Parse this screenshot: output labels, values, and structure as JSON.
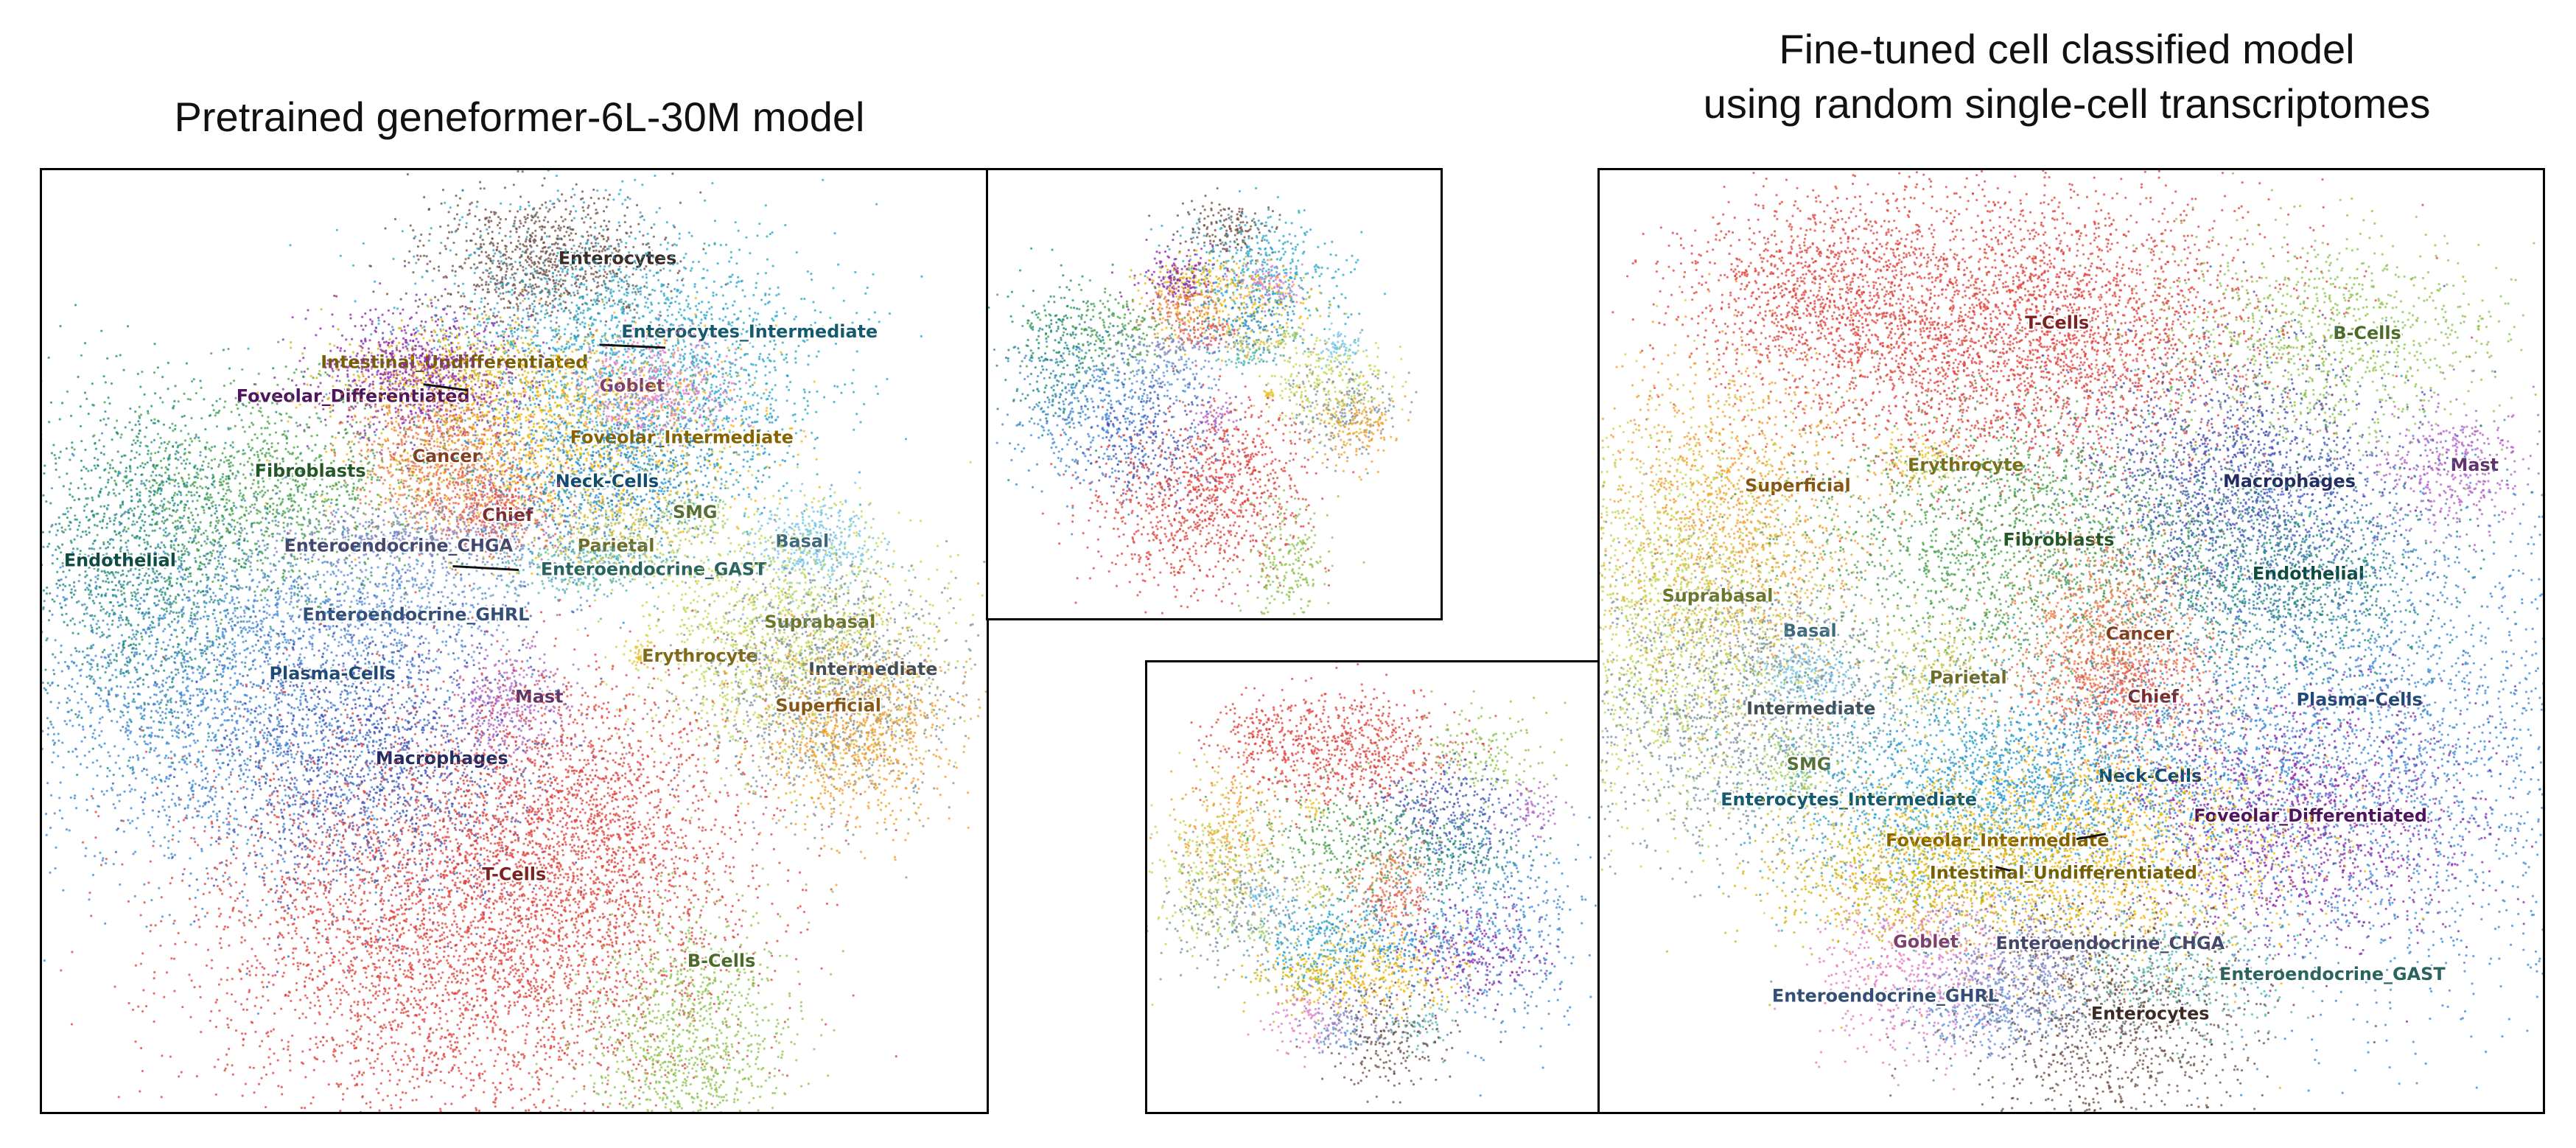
{
  "titles": {
    "left": "Pretrained geneformer-6L-30M model",
    "right_line1": "Fine-tuned cell classified model",
    "right_line2": "using random single-cell transcriptomes"
  },
  "chart_data": [
    {
      "type": "scatter",
      "panel": "left",
      "xlabel": "",
      "ylabel": "",
      "clusters": [
        {
          "name": "Enterocytes",
          "color": "#6d4c41"
        },
        {
          "name": "Enterocytes_Intermediate",
          "color": "#26a6c9"
        },
        {
          "name": "Intestinal_Undifferentiated",
          "color": "#d4b106"
        },
        {
          "name": "Goblet",
          "color": "#e377c2"
        },
        {
          "name": "Foveolar_Differentiated",
          "color": "#8e24aa"
        },
        {
          "name": "Foveolar_Intermediate",
          "color": "#f4b400"
        },
        {
          "name": "Cancer",
          "color": "#e8743b"
        },
        {
          "name": "Neck-Cells",
          "color": "#1e88c8"
        },
        {
          "name": "Fibroblasts",
          "color": "#43a047"
        },
        {
          "name": "Chief",
          "color": "#e05050"
        },
        {
          "name": "SMG",
          "color": "#9ccc65"
        },
        {
          "name": "Enteroendocrine_CHGA",
          "color": "#7b7fc4"
        },
        {
          "name": "Parietal",
          "color": "#c9c34a"
        },
        {
          "name": "Basal",
          "color": "#6ec1e4"
        },
        {
          "name": "Endothelial",
          "color": "#1a8a78"
        },
        {
          "name": "Enteroendocrine_GAST",
          "color": "#4db6ac"
        },
        {
          "name": "Enteroendocrine_GHRL",
          "color": "#5c8fd6"
        },
        {
          "name": "Suprabasal",
          "color": "#c0d84a"
        },
        {
          "name": "Erythrocyte",
          "color": "#e6c229"
        },
        {
          "name": "Intermediate",
          "color": "#78909c"
        },
        {
          "name": "Plasma-Cells",
          "color": "#3a87d6"
        },
        {
          "name": "Superficial",
          "color": "#f39c27"
        },
        {
          "name": "Mast",
          "color": "#b05fc3"
        },
        {
          "name": "Macrophages",
          "color": "#3f51b5"
        },
        {
          "name": "T-Cells",
          "color": "#e0403a"
        },
        {
          "name": "B-Cells",
          "color": "#8bc34a"
        }
      ]
    },
    {
      "type": "scatter",
      "panel": "mid-top",
      "xlabel": "",
      "ylabel": ""
    },
    {
      "type": "scatter",
      "panel": "mid-bottom",
      "xlabel": "",
      "ylabel": ""
    },
    {
      "type": "scatter",
      "panel": "right",
      "xlabel": "",
      "ylabel": "",
      "clusters": [
        {
          "name": "T-Cells",
          "color": "#e0403a"
        },
        {
          "name": "B-Cells",
          "color": "#8bc34a"
        },
        {
          "name": "Mast",
          "color": "#b05fc3"
        },
        {
          "name": "Erythrocyte",
          "color": "#e6c229"
        },
        {
          "name": "Macrophages",
          "color": "#3f51b5"
        },
        {
          "name": "Superficial",
          "color": "#f39c27"
        },
        {
          "name": "Fibroblasts",
          "color": "#43a047"
        },
        {
          "name": "Endothelial",
          "color": "#1a8a78"
        },
        {
          "name": "Suprabasal",
          "color": "#c0d84a"
        },
        {
          "name": "Cancer",
          "color": "#e8743b"
        },
        {
          "name": "Basal",
          "color": "#6ec1e4"
        },
        {
          "name": "Intermediate",
          "color": "#78909c"
        },
        {
          "name": "Parietal",
          "color": "#c9c34a"
        },
        {
          "name": "Plasma-Cells",
          "color": "#3a87d6"
        },
        {
          "name": "Chief",
          "color": "#e05050"
        },
        {
          "name": "SMG",
          "color": "#9ccc65"
        },
        {
          "name": "Neck-Cells",
          "color": "#1e88c8"
        },
        {
          "name": "Enterocytes_Intermediate",
          "color": "#26a6c9"
        },
        {
          "name": "Foveolar_Differentiated",
          "color": "#8e24aa"
        },
        {
          "name": "Foveolar_Intermediate",
          "color": "#f4b400"
        },
        {
          "name": "Intestinal_Undifferentiated",
          "color": "#d4b106"
        },
        {
          "name": "Goblet",
          "color": "#e377c2"
        },
        {
          "name": "Enteroendocrine_CHGA",
          "color": "#7b7fc4"
        },
        {
          "name": "Enteroendocrine_GAST",
          "color": "#4db6ac"
        },
        {
          "name": "Enteroendocrine_GHRL",
          "color": "#5c8fd6"
        },
        {
          "name": "Enterocytes",
          "color": "#6d4c41"
        }
      ]
    }
  ]
}
